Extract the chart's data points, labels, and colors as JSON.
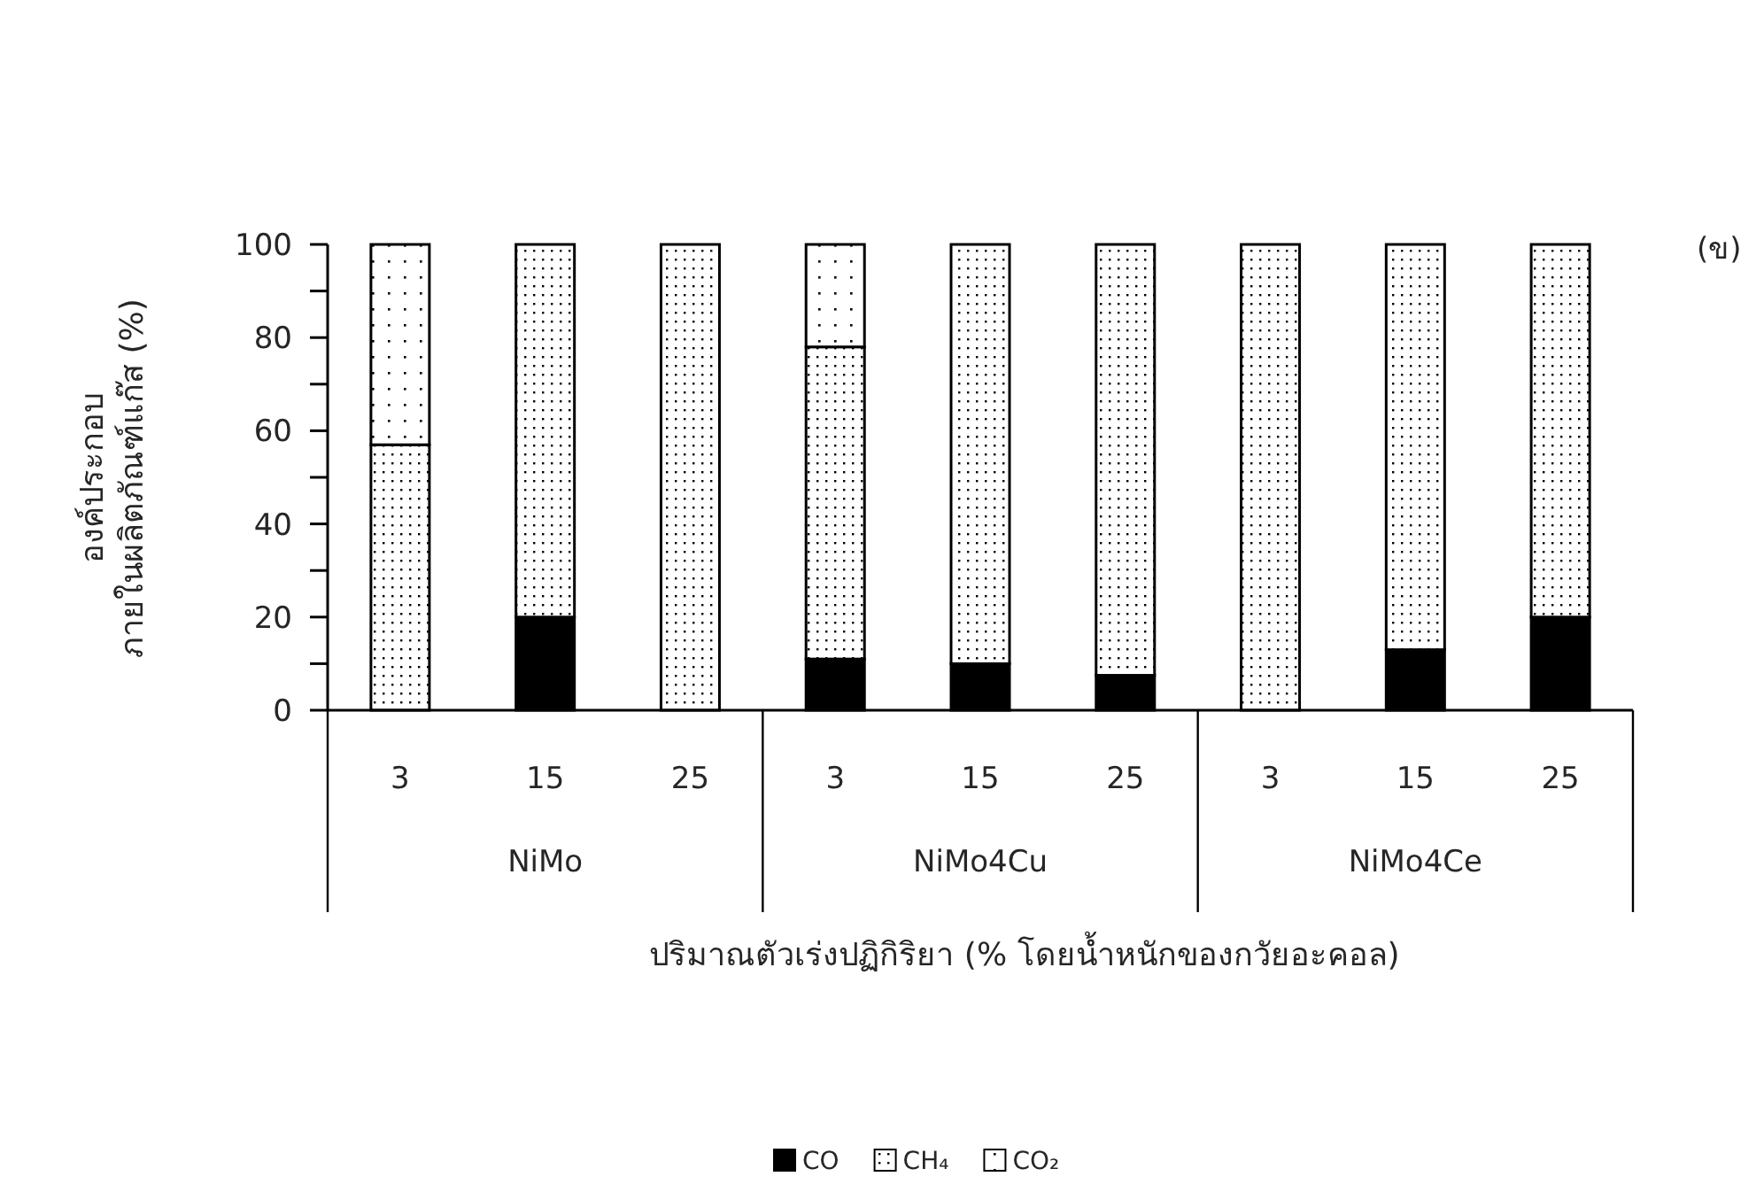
{
  "chart_data": {
    "type": "bar",
    "stacked": true,
    "xlabel": "ปริมาณตัวเร่งปฏิกิริยา (% โดยน้ำหนักของกวัยอะคอล)",
    "ylabel": "องค์ประกอบ\nภายในผลิตภัณฑ์แก๊ส (%)",
    "categories": [
      "3",
      "15",
      "25",
      "3",
      "15",
      "25",
      "3",
      "15",
      "25"
    ],
    "series": [
      {
        "name": "CO",
        "color": "#000000",
        "values": [
          0,
          20,
          0,
          11,
          10,
          7.5,
          0,
          13,
          20
        ]
      },
      {
        "name": "CH₄",
        "color": "#000000",
        "values": [
          57,
          80,
          100,
          67,
          90,
          92.5,
          100,
          87,
          80
        ]
      },
      {
        "name": "CO₂",
        "color": "#000000",
        "values": [
          43,
          0,
          0,
          22,
          0,
          0,
          0,
          0,
          0
        ]
      }
    ],
    "annotations": [
      "NiMo",
      "NiMo4Cu",
      "NiMo4Ce",
      "(ข)"
    ],
    "ylim": [
      0,
      100
    ],
    "yticks": [
      0,
      {
        "value": 10,
        "label": null
      },
      20,
      {
        "value": 30,
        "label": null
      },
      40,
      {
        "value": 50,
        "label": null
      },
      60,
      {
        "value": 70,
        "label": null
      },
      80,
      {
        "value": 90,
        "label": null
      },
      100
    ],
    "grid": false,
    "legend": "bottom"
  }
}
